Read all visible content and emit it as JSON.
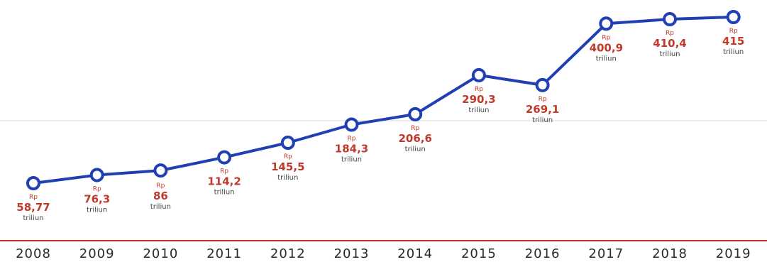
{
  "chart_data": {
    "type": "line",
    "categories": [
      "2008",
      "2009",
      "2010",
      "2011",
      "2012",
      "2013",
      "2014",
      "2015",
      "2016",
      "2017",
      "2018",
      "2019"
    ],
    "values": [
      58.77,
      76.3,
      86,
      114.2,
      145.5,
      184.3,
      206.6,
      290.3,
      269.1,
      400.9,
      410.4,
      415
    ],
    "value_labels": [
      "58,77",
      "76,3",
      "86",
      "114,2",
      "145,5",
      "184,3",
      "206,6",
      "290,3",
      "269,1",
      "400,9",
      "410,4",
      "415"
    ],
    "prefix": "Rp",
    "unit": "triliun",
    "title": "",
    "xlabel": "",
    "ylabel": "",
    "grid": false
  },
  "colors": {
    "line": "#1f3fb3",
    "marker_fill": "#ffffff",
    "value_text": "#c0392b",
    "unit_text": "#444444",
    "baseline": "#c0392b",
    "midline": "#d9d9d9",
    "year_text": "#2b2b2b"
  }
}
